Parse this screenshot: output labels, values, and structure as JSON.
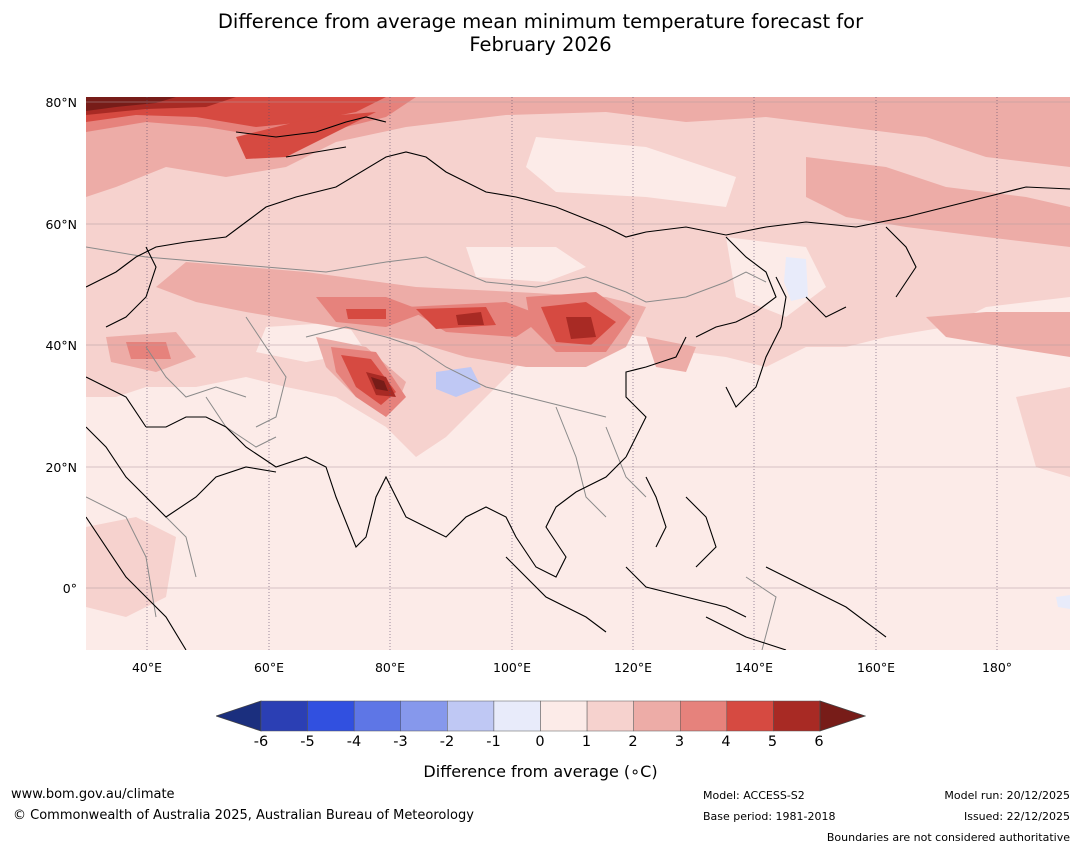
{
  "title": {
    "line1": "Difference from average mean minimum temperature forecast for",
    "line2": "February 2026"
  },
  "map": {
    "lat_labels": [
      "80°N",
      "60°N",
      "40°N",
      "20°N",
      "0°"
    ],
    "lon_labels": [
      "40°E",
      "60°E",
      "80°E",
      "100°E",
      "120°E",
      "140°E",
      "160°E",
      "180°"
    ]
  },
  "colorbar": {
    "ticks": [
      "-6",
      "-5",
      "-4",
      "-3",
      "-2",
      "-1",
      "0",
      "1",
      "2",
      "3",
      "4",
      "5",
      "6"
    ],
    "label": "Difference from average (∘C)",
    "colors": {
      "below_min": "#1b2f7e",
      "bins": [
        "#2b3fb4",
        "#3150e0",
        "#5e76e6",
        "#8698ec",
        "#bfc8f4",
        "#e8ebfa",
        "#fcebe8",
        "#f6d2ce",
        "#edaca7",
        "#e6827c",
        "#d64a41",
        "#a82a24"
      ],
      "above_max": "#771c18"
    }
  },
  "footer": {
    "website": "www.bom.gov.au/climate",
    "copyright": "© Commonwealth of Australia 2025, Australian Bureau of Meteorology",
    "model": "Model: ACCESS-S2",
    "base_period": "Base period: 1981-2018",
    "model_run": "Model run: 20/12/2025",
    "issued": "Issued: 22/12/2025",
    "disclaimer": "Boundaries are not considered authoritative"
  }
}
